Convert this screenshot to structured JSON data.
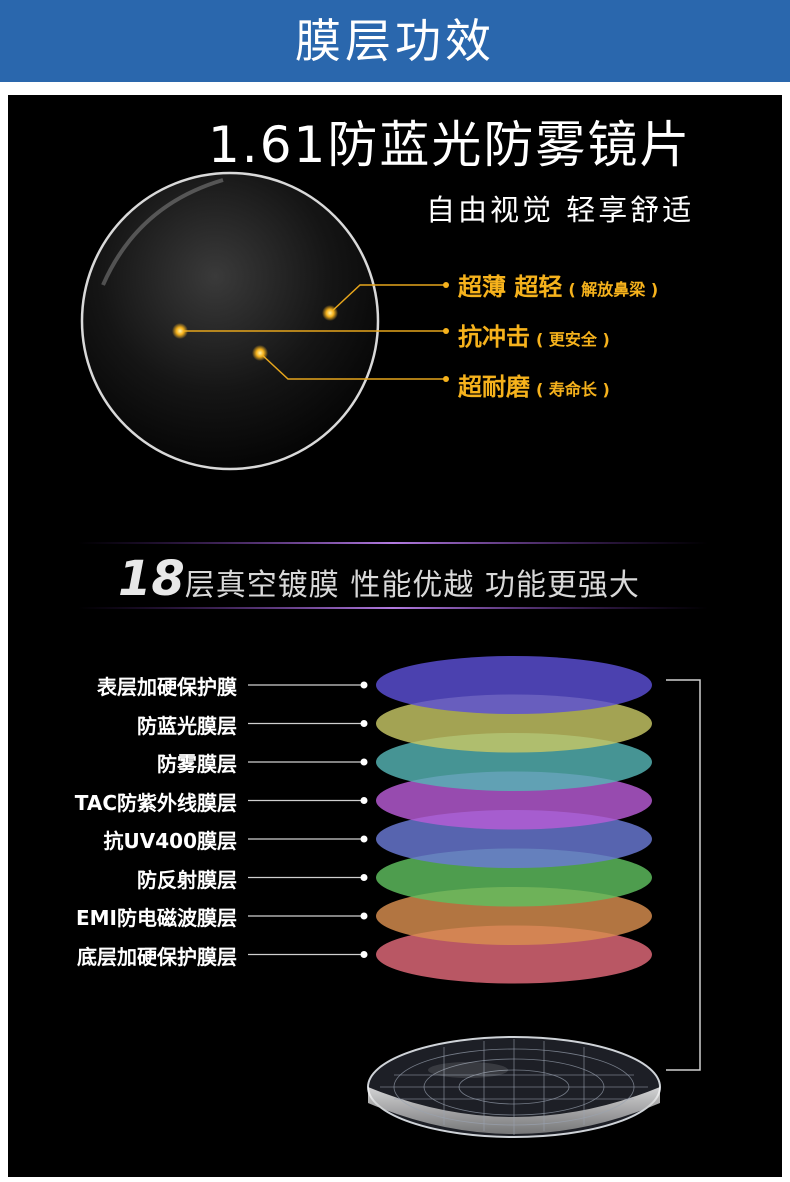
{
  "banner": {
    "title": "膜层功效"
  },
  "product": {
    "title": "1.61防蓝光防雾镜片",
    "slogan": "自由视觉  轻享舒适"
  },
  "features": [
    {
      "main": "超薄 超轻",
      "sub": "( 解放鼻梁 )"
    },
    {
      "main": "抗冲击",
      "sub": "( 更安全 )"
    },
    {
      "main": "超耐磨",
      "sub": "( 寿命长 )"
    }
  ],
  "coating": {
    "count": "18",
    "heading": "层真空镀膜  性能优越  功能更强大"
  },
  "layers": [
    {
      "label": "表层加硬保护膜",
      "color": "#5b4fd6"
    },
    {
      "label": "防蓝光膜层",
      "color": "#c7c765"
    },
    {
      "label": "防雾膜层",
      "color": "#55b4b4"
    },
    {
      "label": "TAC防紫外线膜层",
      "color": "#b85bd6"
    },
    {
      "label": "抗UV400膜层",
      "color": "#6a7ad6"
    },
    {
      "label": "防反射膜层",
      "color": "#5fc05f"
    },
    {
      "label": "EMI防电磁波膜层",
      "color": "#d98f4f"
    },
    {
      "label": "底层加硬保护膜层",
      "color": "#e26a7a"
    }
  ],
  "colors": {
    "banner": "#2a67ad",
    "accent": "#f6b21c",
    "background": "#000000"
  }
}
